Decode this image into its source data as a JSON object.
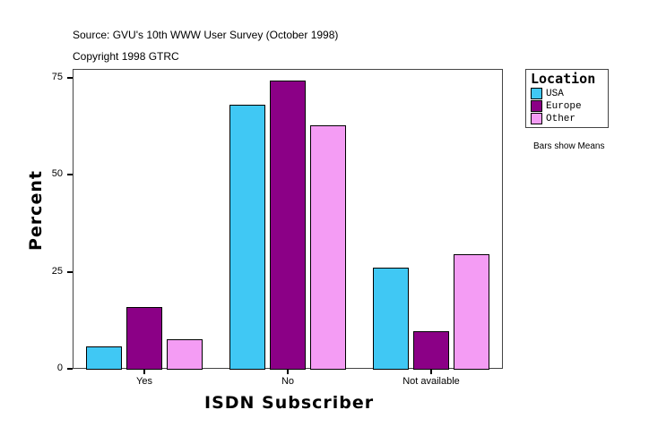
{
  "header": {
    "source": "Source: GVU's 10th WWW User Survey (October 1998)",
    "copyright": "Copyright 1998 GTRC"
  },
  "legend": {
    "title": "Location",
    "items": [
      {
        "label": "USA",
        "color": "#40c8f4"
      },
      {
        "label": "Europe",
        "color": "#8b0086"
      },
      {
        "label": "Other",
        "color": "#f49cf4"
      }
    ],
    "note": "Bars show Means"
  },
  "axes": {
    "x_title": "ISDN Subscriber",
    "y_title": "Percent",
    "y_ticks": [
      "0",
      "25",
      "50",
      "75"
    ]
  },
  "chart_data": {
    "type": "bar",
    "title": "",
    "subtitle": "Source: GVU's 10th WWW User Survey (October 1998)",
    "caption": "Copyright 1998 GTRC",
    "xlabel": "ISDN Subscriber",
    "ylabel": "Percent",
    "categories": [
      "Yes",
      "No",
      "Not available"
    ],
    "series": [
      {
        "name": "USA",
        "color": "#40c8f4",
        "values": [
          5.8,
          68.0,
          26.0
        ]
      },
      {
        "name": "Europe",
        "color": "#8b0086",
        "values": [
          15.9,
          74.2,
          9.7
        ]
      },
      {
        "name": "Other",
        "color": "#f49cf4",
        "values": [
          7.6,
          62.7,
          29.5
        ]
      }
    ],
    "ylim": [
      0,
      77
    ],
    "yticks": [
      0,
      25,
      50,
      75
    ],
    "grid": false,
    "legend": {
      "title": "Location",
      "position": "right-top"
    },
    "annotations": [
      "Bars show Means"
    ]
  }
}
